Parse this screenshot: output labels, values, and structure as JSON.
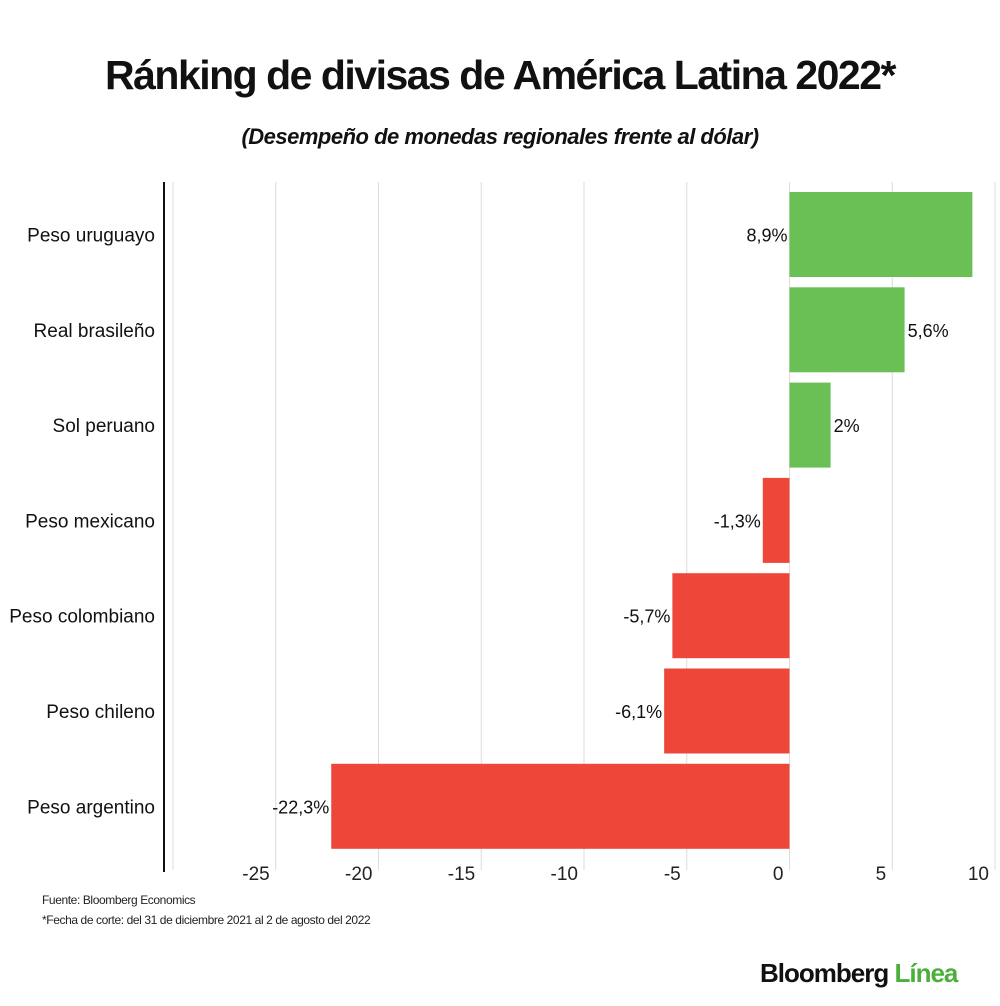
{
  "title": "Ránking de divisas de América Latina 2022*",
  "subtitle": "(Desempeño de monedas regionales frente al dólar)",
  "chart_data": {
    "type": "bar",
    "orientation": "horizontal",
    "categories": [
      "Peso uruguayo",
      "Real brasileño",
      "Sol peruano",
      "Peso mexicano",
      "Peso colombiano",
      "Peso chileno",
      "Peso argentino"
    ],
    "values": [
      8.9,
      5.6,
      2,
      -1.3,
      -5.7,
      -6.1,
      -22.3
    ],
    "data_labels": [
      "8,9%",
      "5,6%",
      "2%",
      "-1,3%",
      "-5,7%",
      "-6,1%",
      "-22,3%"
    ],
    "xlim": [
      -30,
      10
    ],
    "xticks": [
      -25,
      -20,
      -15,
      -10,
      -5,
      0,
      5,
      10
    ],
    "xtick_labels": [
      "-25",
      "-20",
      "-15",
      "-10",
      "-5",
      "0",
      "5",
      "10"
    ],
    "grid": true,
    "colors": {
      "positive": "#6abf55",
      "negative": "#ee473a"
    }
  },
  "footer": {
    "source": "Fuente: Bloomberg Economics",
    "note": "*Fecha de corte: del 31 de diciembre 2021 al 2 de agosto del 2022"
  },
  "logo": {
    "part1": "Bloomberg",
    "part2": "Línea"
  }
}
